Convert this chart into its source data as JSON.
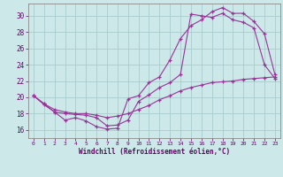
{
  "xlabel": "Windchill (Refroidissement éolien,°C)",
  "bg_color": "#cce8e8",
  "line_color": "#993399",
  "grid_color": "#aacccc",
  "text_color": "#660066",
  "axis_color": "#888888",
  "xlim": [
    -0.5,
    23.5
  ],
  "ylim": [
    15.0,
    31.5
  ],
  "xticks": [
    0,
    1,
    2,
    3,
    4,
    5,
    6,
    7,
    8,
    9,
    10,
    11,
    12,
    13,
    14,
    15,
    16,
    17,
    18,
    19,
    20,
    21,
    22,
    23
  ],
  "yticks": [
    16,
    18,
    20,
    22,
    24,
    26,
    28,
    30
  ],
  "line1_x": [
    0,
    1,
    2,
    3,
    4,
    5,
    6,
    7,
    8,
    9,
    10,
    11,
    12,
    13,
    14,
    15,
    16,
    17,
    18,
    19,
    20,
    21,
    22,
    23
  ],
  "line1_y": [
    20.2,
    19.1,
    18.2,
    17.2,
    17.5,
    17.1,
    16.4,
    16.1,
    16.2,
    19.8,
    20.2,
    21.8,
    22.5,
    24.6,
    27.2,
    28.8,
    29.5,
    30.5,
    31.0,
    30.3,
    30.3,
    29.3,
    27.8,
    22.8
  ],
  "line2_x": [
    0,
    1,
    2,
    3,
    4,
    5,
    6,
    7,
    8,
    9,
    10,
    11,
    12,
    13,
    14,
    15,
    16,
    17,
    18,
    19,
    20,
    21,
    22,
    23
  ],
  "line2_y": [
    20.2,
    19.2,
    18.2,
    18.0,
    17.9,
    17.8,
    17.5,
    16.5,
    16.6,
    17.2,
    19.5,
    20.3,
    21.2,
    21.8,
    22.8,
    30.2,
    30.0,
    29.8,
    30.3,
    29.5,
    29.2,
    28.5,
    24.0,
    22.3
  ],
  "line3_x": [
    0,
    1,
    2,
    3,
    4,
    5,
    6,
    7,
    8,
    9,
    10,
    11,
    12,
    13,
    14,
    15,
    16,
    17,
    18,
    19,
    20,
    21,
    22,
    23
  ],
  "line3_y": [
    20.2,
    19.2,
    18.5,
    18.2,
    18.0,
    18.0,
    17.8,
    17.5,
    17.7,
    18.0,
    18.5,
    19.0,
    19.7,
    20.2,
    20.8,
    21.2,
    21.5,
    21.8,
    21.9,
    22.0,
    22.2,
    22.3,
    22.4,
    22.5
  ]
}
